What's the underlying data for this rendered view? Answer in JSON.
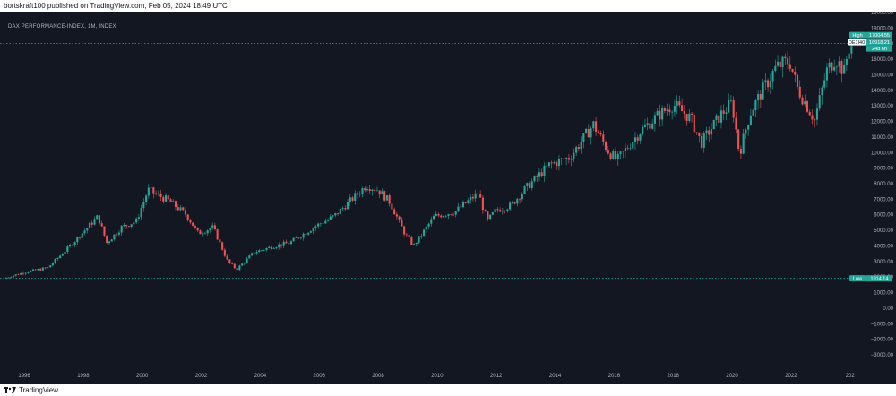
{
  "header": {
    "publish_text": "bortskraft100 published on TradingView.com, Feb 05, 2024 18:49 UTC"
  },
  "footer": {
    "brand": "TradingView"
  },
  "colors": {
    "background": "#131722",
    "up": "#26a69a",
    "down": "#ef5350",
    "line": "#26a69a",
    "axis_text": "#b2b5be"
  },
  "chart_data": {
    "type": "candlestick",
    "title": "DAX PERFORMANCE-INDEX, 1M, INDEX",
    "xlabel": "",
    "ylabel": "",
    "ylim": [
      -3400,
      19200
    ],
    "xlim": [
      1995.3,
      2024.1
    ],
    "x_ticks": [
      "1996",
      "1998",
      "2000",
      "2002",
      "2004",
      "2006",
      "2008",
      "2010",
      "2012",
      "2014",
      "2016",
      "2018",
      "2020",
      "2022",
      "202"
    ],
    "y_ticks": [
      "19000.00",
      "18000.00",
      "17000.00",
      "16000.00",
      "15000.00",
      "14000.00",
      "13000.00",
      "12000.00",
      "11000.00",
      "10000.00",
      "9000.00",
      "8000.00",
      "7000.00",
      "6000.00",
      "5000.00",
      "4000.00",
      "3000.00",
      "2000.00",
      "1000.00",
      "0.00",
      "−1000.00",
      "−2000.00",
      "−3000.00"
    ],
    "high_line": {
      "label": "High",
      "value": 17004.55,
      "value_text": "17004.55"
    },
    "low_line": {
      "label": "Low",
      "value": 1914.14,
      "value_text": "1914.14"
    },
    "last_price": {
      "symbol": "DE1I40",
      "value": 16918.21,
      "value_text": "16918.21",
      "countdown": "24d 6h"
    },
    "anchors": [
      [
        1995.3,
        1914
      ],
      [
        1996.0,
        2300
      ],
      [
        1996.8,
        2600
      ],
      [
        1997.5,
        3900
      ],
      [
        1998.5,
        5900
      ],
      [
        1998.8,
        4200
      ],
      [
        1999.3,
        5200
      ],
      [
        1999.8,
        5600
      ],
      [
        2000.2,
        7600
      ],
      [
        2000.9,
        6900
      ],
      [
        2001.5,
        6000
      ],
      [
        2001.9,
        4800
      ],
      [
        2002.4,
        5200
      ],
      [
        2002.9,
        3000
      ],
      [
        2003.2,
        2500
      ],
      [
        2003.8,
        3600
      ],
      [
        2004.5,
        4000
      ],
      [
        2005.0,
        4200
      ],
      [
        2005.9,
        5300
      ],
      [
        2006.5,
        5900
      ],
      [
        2007.0,
        6800
      ],
      [
        2007.6,
        7900
      ],
      [
        2008.0,
        7600
      ],
      [
        2008.4,
        6800
      ],
      [
        2008.9,
        4800
      ],
      [
        2009.2,
        4000
      ],
      [
        2009.9,
        5900
      ],
      [
        2010.6,
        6200
      ],
      [
        2011.4,
        7400
      ],
      [
        2011.7,
        5600
      ],
      [
        2012.0,
        6300
      ],
      [
        2012.5,
        6600
      ],
      [
        2013.0,
        7700
      ],
      [
        2013.8,
        9200
      ],
      [
        2014.5,
        9700
      ],
      [
        2015.3,
        11800
      ],
      [
        2015.8,
        10100
      ],
      [
        2016.1,
        9500
      ],
      [
        2016.9,
        11400
      ],
      [
        2017.5,
        12400
      ],
      [
        2018.0,
        13100
      ],
      [
        2018.6,
        12200
      ],
      [
        2018.95,
        10600
      ],
      [
        2019.6,
        12400
      ],
      [
        2020.0,
        13200
      ],
      [
        2020.25,
        9900
      ],
      [
        2020.6,
        12500
      ],
      [
        2020.95,
        13700
      ],
      [
        2021.5,
        15500
      ],
      [
        2021.95,
        15900
      ],
      [
        2022.2,
        14200
      ],
      [
        2022.6,
        12800
      ],
      [
        2022.8,
        12100
      ],
      [
        2023.2,
        15200
      ],
      [
        2023.5,
        16100
      ],
      [
        2023.8,
        15200
      ],
      [
        2023.95,
        16700
      ],
      [
        2024.08,
        16918
      ]
    ]
  }
}
